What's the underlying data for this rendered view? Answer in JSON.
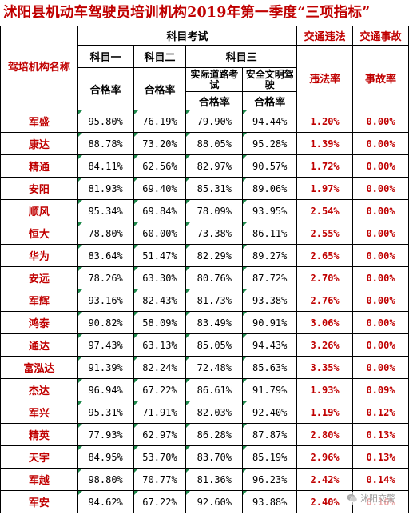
{
  "title": "沭阳县机动车驾驶员培训机构2019年第一季度“三项指标”",
  "header": {
    "org": "驾培机构名称",
    "exam": "科目考试",
    "traffic_violation": "交通违法",
    "traffic_accident": "交通事故",
    "subject1": "科目一",
    "subject2": "科目二",
    "subject3": "科目三",
    "road_test": "实际道路考试",
    "safe_driving": "安全文明驾驶",
    "pass_rate": "合格率",
    "violation_rate": "违法率",
    "accident_rate": "事故率"
  },
  "rows": [
    {
      "name": "军盛",
      "s1": "95.80%",
      "s2": "76.19%",
      "s3a": "79.90%",
      "s3b": "94.44%",
      "viol": "1.20%",
      "acc": "0.00%"
    },
    {
      "name": "康达",
      "s1": "88.78%",
      "s2": "73.20%",
      "s3a": "88.05%",
      "s3b": "95.28%",
      "viol": "1.39%",
      "acc": "0.00%"
    },
    {
      "name": "精通",
      "s1": "84.11%",
      "s2": "62.56%",
      "s3a": "82.97%",
      "s3b": "90.57%",
      "viol": "1.72%",
      "acc": "0.00%"
    },
    {
      "name": "安阳",
      "s1": "81.93%",
      "s2": "69.40%",
      "s3a": "85.31%",
      "s3b": "89.06%",
      "viol": "1.97%",
      "acc": "0.00%"
    },
    {
      "name": "顺风",
      "s1": "95.34%",
      "s2": "69.84%",
      "s3a": "78.09%",
      "s3b": "93.95%",
      "viol": "2.54%",
      "acc": "0.00%"
    },
    {
      "name": "恒大",
      "s1": "78.80%",
      "s2": "60.00%",
      "s3a": "73.38%",
      "s3b": "86.11%",
      "viol": "2.55%",
      "acc": "0.00%"
    },
    {
      "name": "华为",
      "s1": "83.64%",
      "s2": "51.47%",
      "s3a": "82.29%",
      "s3b": "89.27%",
      "viol": "2.65%",
      "acc": "0.00%"
    },
    {
      "name": "安远",
      "s1": "78.26%",
      "s2": "63.30%",
      "s3a": "80.76%",
      "s3b": "87.72%",
      "viol": "2.70%",
      "acc": "0.00%"
    },
    {
      "name": "军辉",
      "s1": "93.16%",
      "s2": "82.43%",
      "s3a": "81.73%",
      "s3b": "93.38%",
      "viol": "2.76%",
      "acc": "0.00%"
    },
    {
      "name": "鸿泰",
      "s1": "90.82%",
      "s2": "58.09%",
      "s3a": "83.49%",
      "s3b": "90.91%",
      "viol": "3.06%",
      "acc": "0.00%"
    },
    {
      "name": "通达",
      "s1": "97.43%",
      "s2": "63.13%",
      "s3a": "85.05%",
      "s3b": "94.43%",
      "viol": "3.26%",
      "acc": "0.00%"
    },
    {
      "name": "富泓达",
      "s1": "91.39%",
      "s2": "82.24%",
      "s3a": "72.48%",
      "s3b": "85.63%",
      "viol": "3.35%",
      "acc": "0.00%"
    },
    {
      "name": "杰达",
      "s1": "96.94%",
      "s2": "67.22%",
      "s3a": "86.61%",
      "s3b": "91.79%",
      "viol": "1.93%",
      "acc": "0.09%"
    },
    {
      "name": "军兴",
      "s1": "95.31%",
      "s2": "71.91%",
      "s3a": "82.03%",
      "s3b": "92.40%",
      "viol": "1.19%",
      "acc": "0.12%"
    },
    {
      "name": "精英",
      "s1": "77.93%",
      "s2": "62.97%",
      "s3a": "86.28%",
      "s3b": "87.87%",
      "viol": "2.80%",
      "acc": "0.13%"
    },
    {
      "name": "天宇",
      "s1": "84.95%",
      "s2": "53.70%",
      "s3a": "83.70%",
      "s3b": "85.19%",
      "viol": "2.96%",
      "acc": "0.13%"
    },
    {
      "name": "军越",
      "s1": "98.80%",
      "s2": "70.77%",
      "s3a": "81.36%",
      "s3b": "96.23%",
      "viol": "2.42%",
      "acc": "0.14%"
    },
    {
      "name": "军安",
      "s1": "94.62%",
      "s2": "67.22%",
      "s3a": "92.60%",
      "s3b": "93.88%",
      "viol": "2.40%",
      "acc": "0.16%"
    }
  ],
  "watermark": {
    "text": "沭阳交警",
    "icon": "wechat-icon"
  }
}
